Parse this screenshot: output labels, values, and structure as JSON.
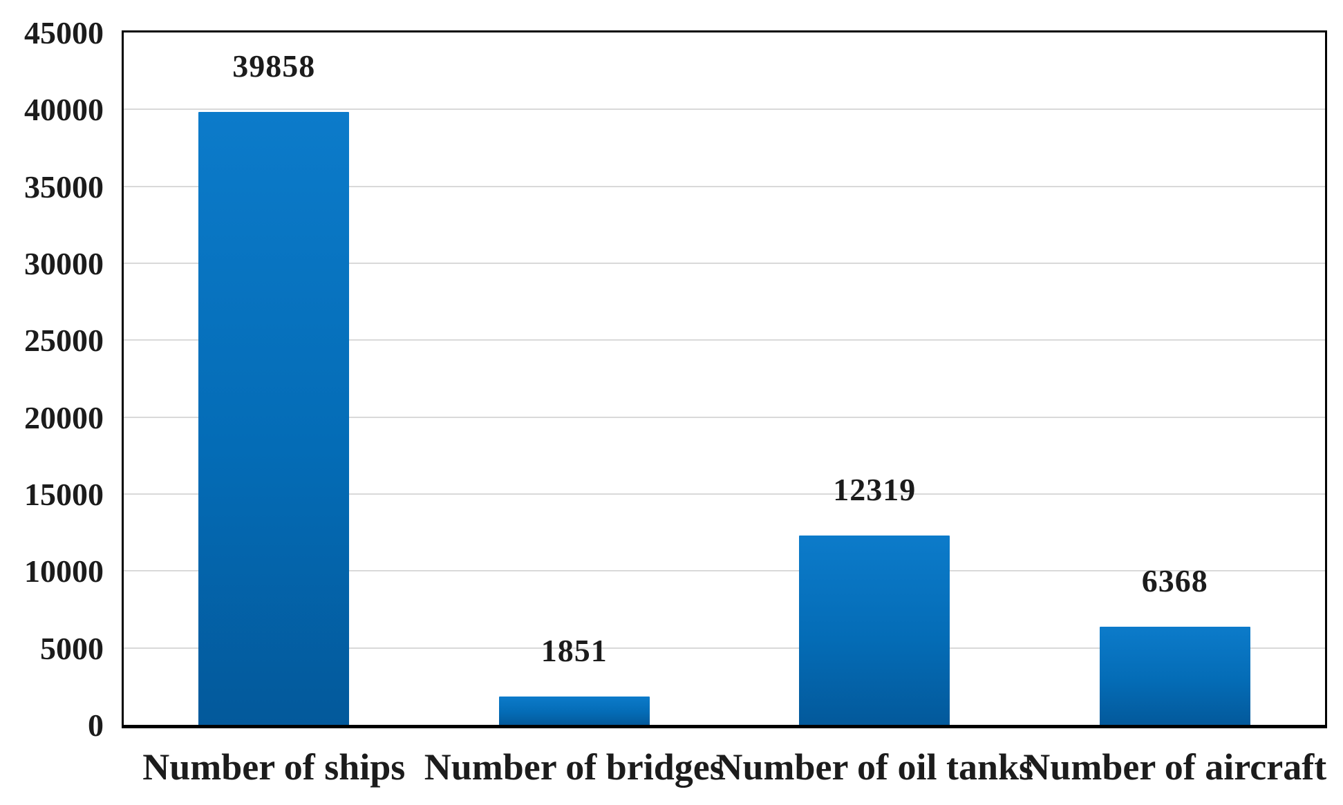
{
  "chart_data": {
    "type": "bar",
    "title": "",
    "xlabel": "",
    "ylabel": "",
    "categories": [
      "Number of ships",
      "Number of bridges",
      "Number of oil tanks",
      "Number of aircraft"
    ],
    "values": [
      39858,
      1851,
      12319,
      6368
    ],
    "data_labels": [
      "39858",
      "1851",
      "12319",
      "6368"
    ],
    "ylim": [
      0,
      45000
    ],
    "ytick_step": 5000,
    "ytick_labels": [
      "0",
      "5000",
      "10000",
      "15000",
      "20000",
      "25000",
      "30000",
      "35000",
      "40000",
      "45000"
    ],
    "grid": true,
    "legend": false,
    "colors": {
      "bar_gradient_top": "#0c7bca",
      "bar_gradient_mid": "#046cb6",
      "bar_gradient_bottom": "#03599b",
      "gridline": "#d9d9d9",
      "axis_border": "#000000",
      "tick_label_text": "#1c1c1c",
      "value_label_text": "#1c1c1c",
      "category_label_text": "#1c1c1c",
      "background": "#ffffff"
    }
  }
}
